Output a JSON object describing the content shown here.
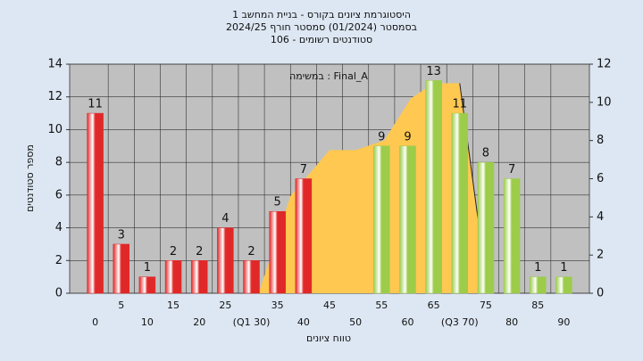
{
  "chart_data": {
    "type": "bar",
    "title": "היסטוגרמת ציונים בקורס - בניית המחשב 1",
    "subtitle": "בסמסטר  (01/2024)  סמסטר חורף  2024/25",
    "subtitle2": "סטודנטים רשומים - 106",
    "annotation": "במשימה : Final_A",
    "x_label": "טווח ציונים",
    "y_label": "מספר סטודנטים",
    "categories": [
      "0",
      "5",
      "10",
      "15",
      "20",
      "25",
      "(Q1 30)",
      "35",
      "40",
      "45",
      "50",
      "55",
      "60",
      "65",
      "(Q3 70)",
      "75",
      "80",
      "85",
      "90"
    ],
    "values": [
      11,
      3,
      1,
      2,
      2,
      4,
      2,
      5,
      7,
      0,
      0,
      9,
      9,
      13,
      11,
      8,
      7,
      1,
      1
    ],
    "colors": [
      "#e02828",
      "#e02828",
      "#e02828",
      "#e02828",
      "#e02828",
      "#e02828",
      "#e02828",
      "#e02828",
      "#e02828",
      "#e02828",
      "#e02828",
      "#9ccc4a",
      "#9ccc4a",
      "#9ccc4a",
      "#9ccc4a",
      "#9ccc4a",
      "#9ccc4a",
      "#9ccc4a",
      "#9ccc4a"
    ],
    "area": {
      "axis": "y2",
      "color": "#ffc850",
      "x": [
        31.4,
        37.5,
        45,
        50,
        55.5,
        60.6,
        65,
        70,
        73.5
      ],
      "values": [
        0,
        5.1,
        7.5,
        7.5,
        8,
        10.2,
        11,
        11,
        3.9
      ]
    },
    "xlim": [
      -2.5,
      92.5
    ],
    "ylim": [
      0,
      14
    ],
    "yticks": [
      0,
      2,
      4,
      6,
      8,
      10,
      12,
      14
    ],
    "y2lim": [
      0,
      12
    ],
    "y2ticks": [
      0,
      2,
      4,
      6,
      8,
      10,
      12
    ],
    "grid": true
  }
}
